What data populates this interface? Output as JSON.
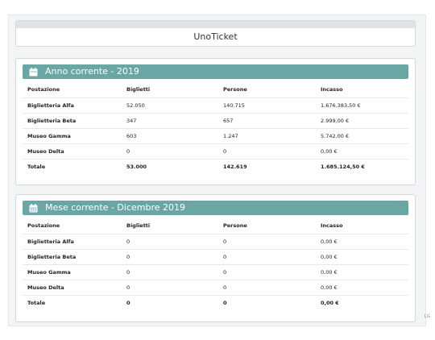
{
  "app": {
    "title": "UnoTicket"
  },
  "colors": {
    "accent": "#6aa6a4"
  },
  "yearly": {
    "icon": "calendar-icon",
    "title": "Anno corrente - 2019",
    "columns": [
      "Postazione",
      "Biglietti",
      "Persone",
      "Incasso"
    ],
    "rows": [
      [
        "Biglietteria Alfa",
        "52.050",
        "140.715",
        "1.676.383,50 €"
      ],
      [
        "Biglietteria Beta",
        "347",
        "657",
        "2.999,00 €"
      ],
      [
        "Museo Gamma",
        "603",
        "1.247",
        "5.742,00 €"
      ],
      [
        "Museo Delta",
        "0",
        "0",
        "0,00 €"
      ]
    ],
    "total": [
      "Totale",
      "53.000",
      "142.619",
      "1.685.124,50 €"
    ]
  },
  "monthly": {
    "icon": "calendar-grid-icon",
    "title": "Mese corrente - Dicembre 2019",
    "columns": [
      "Postazione",
      "Biglietti",
      "Persone",
      "Incasso"
    ],
    "rows": [
      [
        "Biglietteria Alfa",
        "0",
        "0",
        "0,00 €"
      ],
      [
        "Biglietteria Beta",
        "0",
        "0",
        "0,00 €"
      ],
      [
        "Museo Gamma",
        "0",
        "0",
        "0,00 €"
      ],
      [
        "Museo Delta",
        "0",
        "0",
        "0,00 €"
      ]
    ],
    "total": [
      "Totale",
      "0",
      "0",
      "0,00 €"
    ]
  },
  "corner_mark": "LG"
}
